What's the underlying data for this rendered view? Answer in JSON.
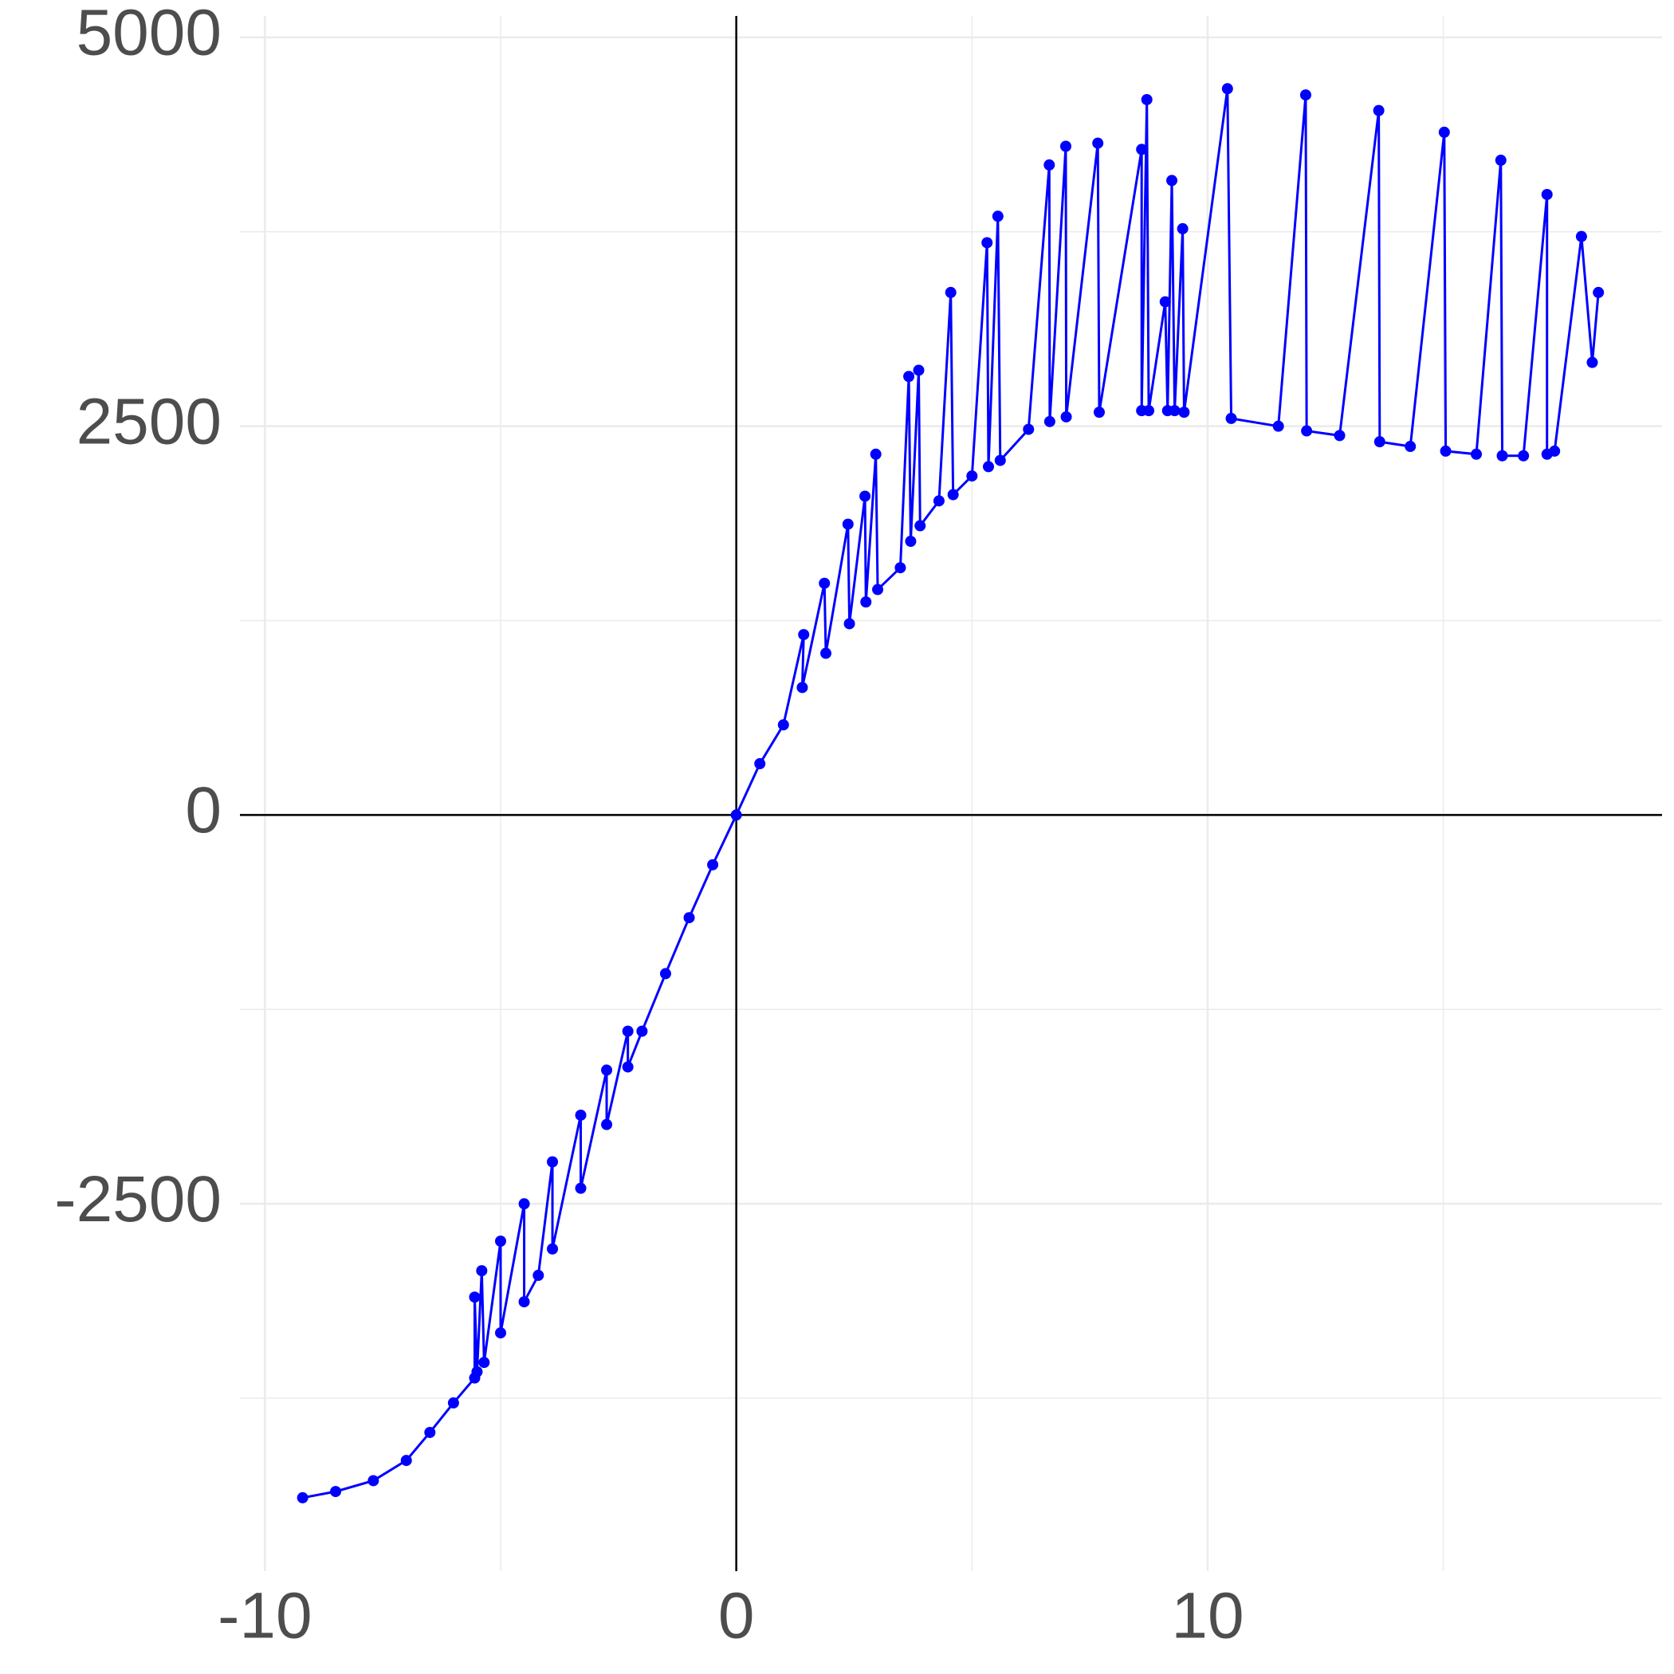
{
  "chart_data": {
    "type": "line",
    "x": [
      -9.2,
      -8.5,
      -7.7,
      -7.0,
      -6.5,
      -6.0,
      -5.55,
      -5.55,
      -5.5,
      -5.4,
      -5.35,
      -5.0,
      -5.0,
      -4.5,
      -4.5,
      -4.2,
      -3.9,
      -3.9,
      -3.3,
      -3.3,
      -2.75,
      -2.75,
      -2.3,
      -2.3,
      -2.0,
      -1.5,
      -1.0,
      -0.5,
      0,
      0.5,
      1.0,
      1.43,
      1.4,
      1.87,
      1.9,
      2.37,
      2.4,
      2.73,
      2.75,
      2.96,
      3.0,
      3.48,
      3.66,
      3.7,
      3.87,
      3.9,
      4.3,
      4.55,
      4.6,
      5.0,
      5.32,
      5.35,
      5.55,
      5.6,
      6.2,
      6.64,
      6.65,
      6.99,
      7.0,
      7.67,
      7.7,
      8.6,
      8.6,
      8.71,
      8.75,
      9.1,
      9.15,
      9.24,
      9.3,
      9.47,
      9.5,
      10.42,
      10.5,
      11.5,
      12.08,
      12.1,
      12.8,
      13.63,
      13.65,
      14.3,
      15.02,
      15.05,
      15.7,
      16.22,
      16.25,
      16.7,
      17.2,
      17.2,
      17.36,
      17.93,
      18.16,
      18.29
    ],
    "series": [
      {
        "color": "#0000ff",
        "values": [
          -4390,
          -4350,
          -4280,
          -4150,
          -3970,
          -3780,
          -3620,
          -3100,
          -3580,
          -2930,
          -3520,
          -2740,
          -3330,
          -2500,
          -3130,
          -2960,
          -2230,
          -2790,
          -1930,
          -2400,
          -1640,
          -1990,
          -1390,
          -1620,
          -1390,
          -1020,
          -660,
          -320,
          0,
          330,
          580,
          1160,
          820,
          1490,
          1040,
          1870,
          1230,
          2050,
          1370,
          2320,
          1450,
          1590,
          2820,
          1760,
          2860,
          1860,
          2020,
          3360,
          2060,
          2180,
          3680,
          2240,
          3850,
          2280,
          2480,
          4180,
          2530,
          4300,
          2560,
          4320,
          2590,
          4280,
          2600,
          4600,
          2600,
          3300,
          2600,
          4080,
          2600,
          3770,
          2590,
          4670,
          2550,
          2500,
          4630,
          2470,
          2440,
          4530,
          2400,
          2370,
          4390,
          2340,
          2320,
          4210,
          2310,
          2310,
          3990,
          2320,
          2340,
          3720,
          2910,
          3360
        ]
      }
    ],
    "xlim": [
      -10.53,
      19.64
    ],
    "xticks": [
      -10,
      0,
      10
    ],
    "ylim": [
      -4862,
      5138
    ],
    "yticks": [
      -2500,
      0,
      2500,
      5000
    ],
    "grid": true,
    "zero_lines": true
  }
}
